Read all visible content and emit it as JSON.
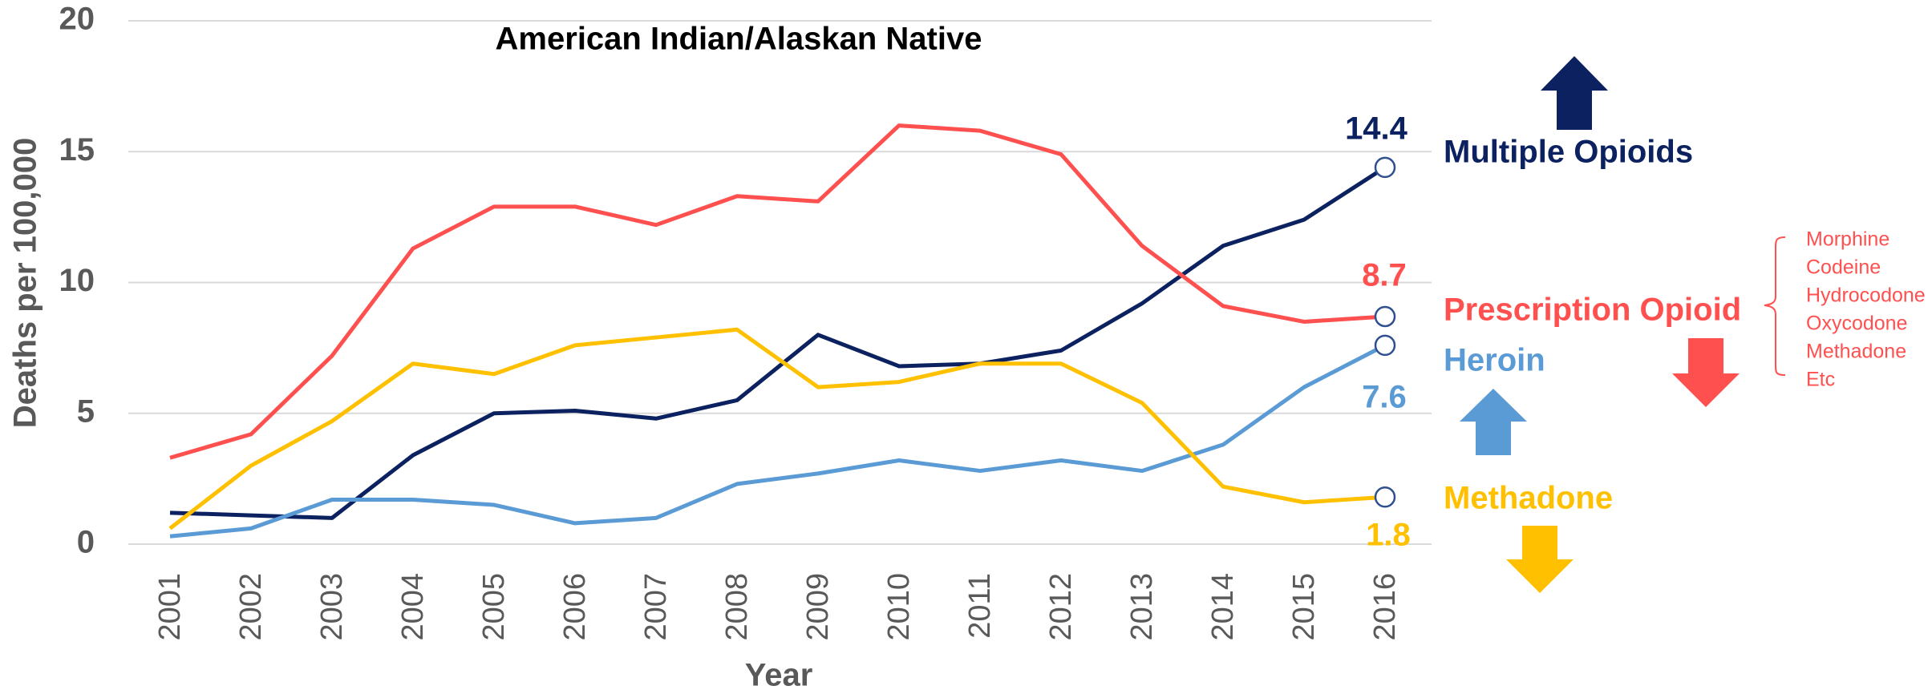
{
  "chart_data": {
    "type": "line",
    "title": "American Indian/Alaskan Native",
    "x_label": "Year",
    "y_label": "Deaths per 100,000",
    "categories": [
      "2001",
      "2002",
      "2003",
      "2004",
      "2005",
      "2006",
      "2007",
      "2008",
      "2009",
      "2010",
      "2011",
      "2012",
      "2013",
      "2014",
      "2015",
      "2016"
    ],
    "ylim": [
      0,
      20
    ],
    "yticks": [
      0,
      5,
      10,
      15,
      20
    ],
    "grid": true,
    "series": [
      {
        "name": "Multiple Opioids",
        "color": "#0c2260",
        "values": [
          1.2,
          1.1,
          1.0,
          3.4,
          5.0,
          5.1,
          4.8,
          5.5,
          8.0,
          6.8,
          6.9,
          7.4,
          9.2,
          11.4,
          12.4,
          14.4
        ]
      },
      {
        "name": "Prescription Opioid",
        "color": "#ff5050",
        "values": [
          3.3,
          4.2,
          7.2,
          11.3,
          12.9,
          12.9,
          12.2,
          13.3,
          13.1,
          16.0,
          15.8,
          14.9,
          11.4,
          9.1,
          8.5,
          8.7
        ]
      },
      {
        "name": "Heroin",
        "color": "#5b9bd5",
        "values": [
          0.3,
          0.6,
          1.7,
          1.7,
          1.5,
          0.8,
          1.0,
          2.3,
          2.7,
          3.2,
          2.8,
          3.2,
          2.8,
          3.8,
          6.0,
          7.6
        ]
      },
      {
        "name": "Methadone",
        "color": "#ffc000",
        "values": [
          0.6,
          3.0,
          4.7,
          6.9,
          6.5,
          7.6,
          7.9,
          8.2,
          6.0,
          6.2,
          6.9,
          6.9,
          5.4,
          2.2,
          1.6,
          1.8
        ]
      }
    ],
    "annotations": [
      "Morphine",
      "Codeine",
      "Hydrocodone",
      "Oxycodone",
      "Methadone",
      "Etc"
    ]
  }
}
